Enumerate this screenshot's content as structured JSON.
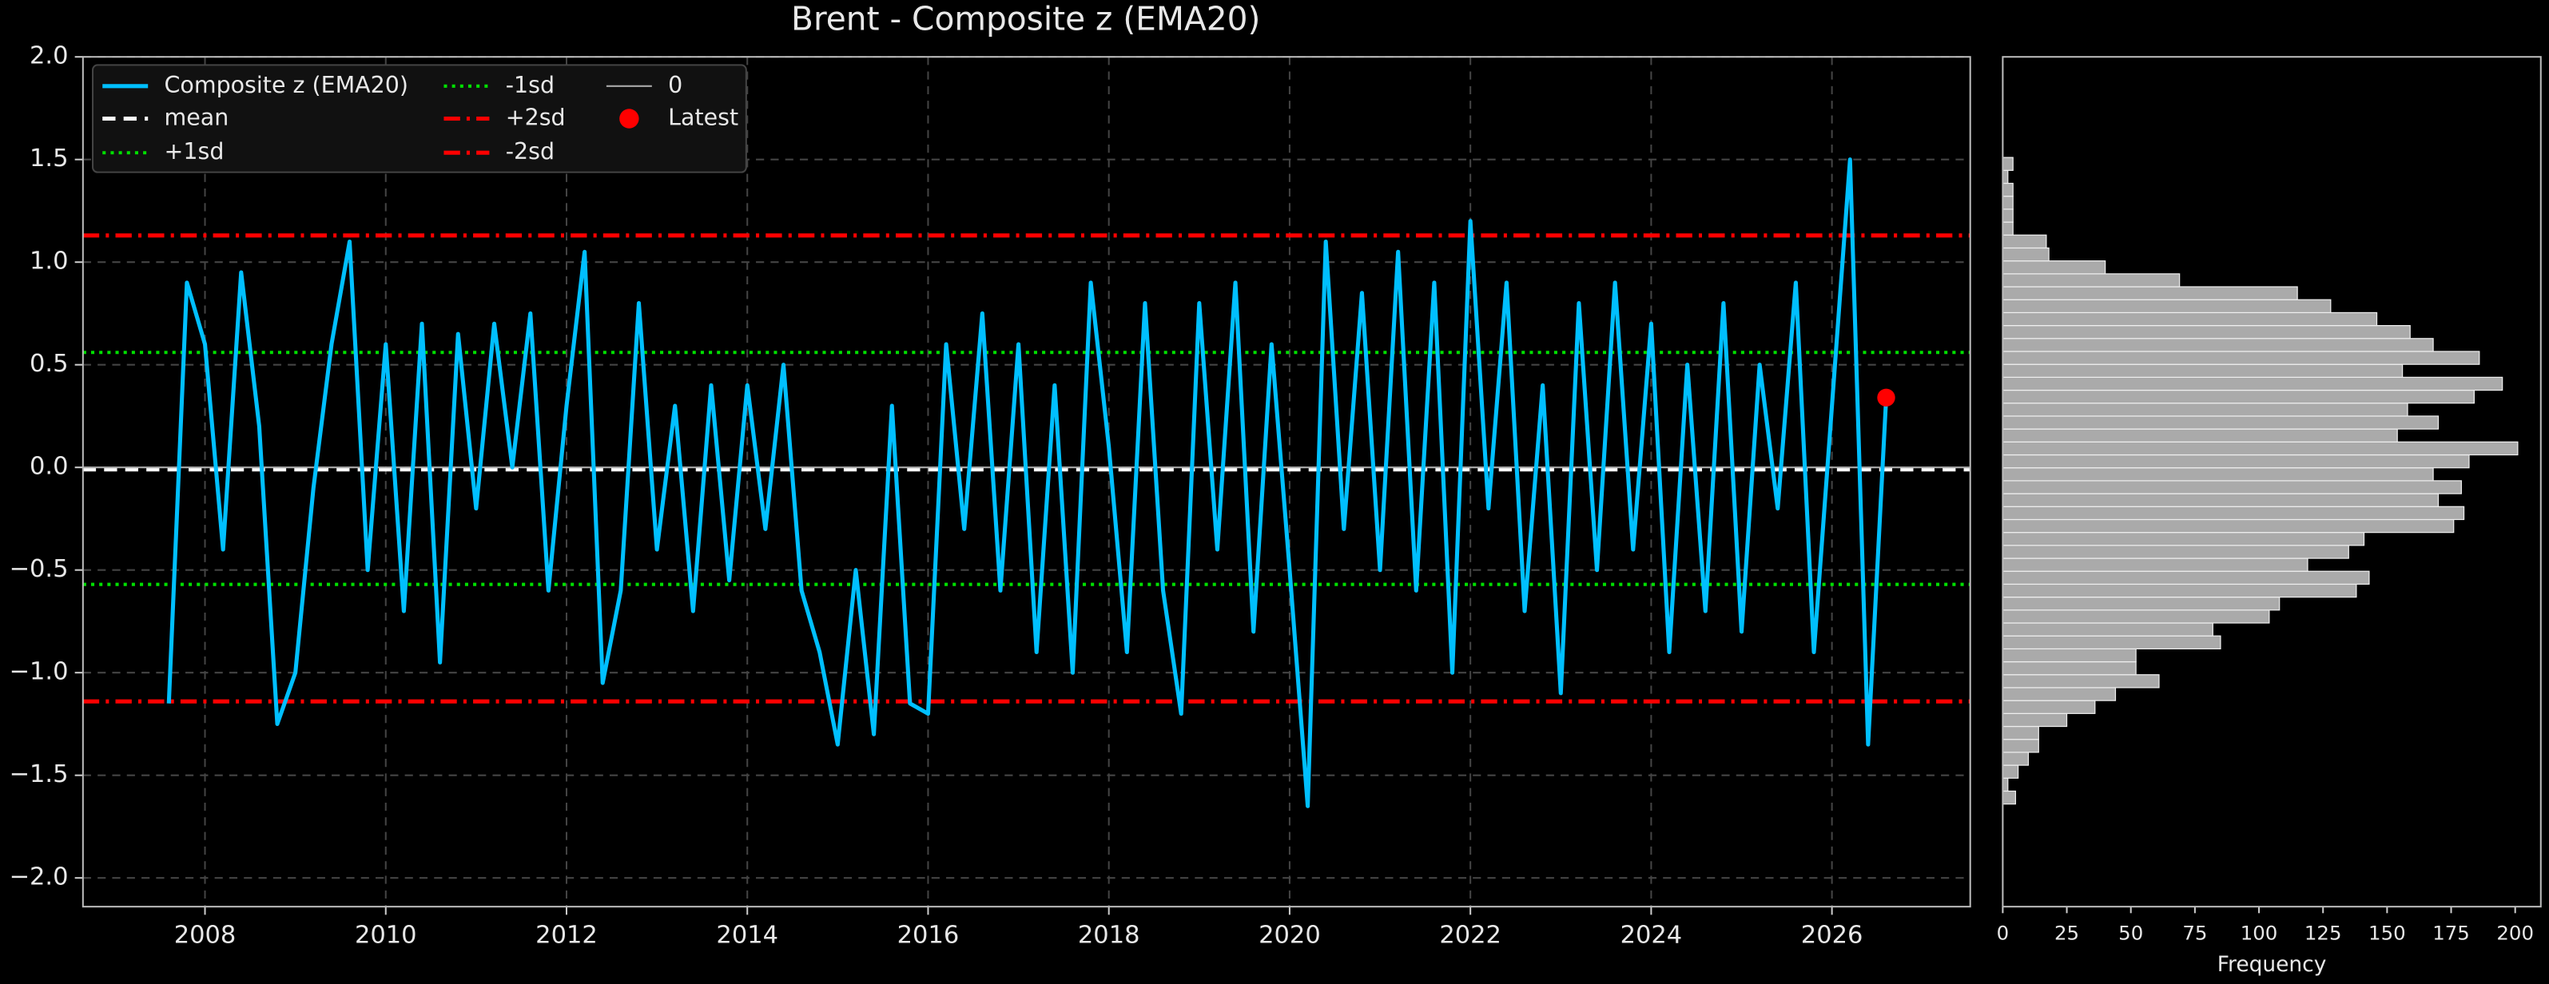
{
  "chart_data": [
    {
      "type": "line",
      "title": "Brent - Composite z (EMA20)",
      "x": [
        2007.6,
        2007.8,
        2008.0,
        2008.2,
        2008.4,
        2008.6,
        2008.8,
        2009.0,
        2009.2,
        2009.4,
        2009.6,
        2009.8,
        2010.0,
        2010.2,
        2010.4,
        2010.6,
        2010.8,
        2011.0,
        2011.2,
        2011.4,
        2011.6,
        2011.8,
        2012.0,
        2012.2,
        2012.4,
        2012.6,
        2012.8,
        2013.0,
        2013.2,
        2013.4,
        2013.6,
        2013.8,
        2014.0,
        2014.2,
        2014.4,
        2014.6,
        2014.8,
        2015.0,
        2015.2,
        2015.4,
        2015.6,
        2015.8,
        2016.0,
        2016.2,
        2016.4,
        2016.6,
        2016.8,
        2017.0,
        2017.2,
        2017.4,
        2017.6,
        2017.8,
        2018.0,
        2018.2,
        2018.4,
        2018.6,
        2018.8,
        2019.0,
        2019.2,
        2019.4,
        2019.6,
        2019.8,
        2020.0,
        2020.2,
        2020.4,
        2020.6,
        2020.8,
        2021.0,
        2021.2,
        2021.4,
        2021.6,
        2021.8,
        2022.0,
        2022.2,
        2022.4,
        2022.6,
        2022.8,
        2023.0,
        2023.2,
        2023.4,
        2023.6,
        2023.8,
        2024.0,
        2024.2,
        2024.4,
        2024.6,
        2024.8,
        2025.0,
        2025.2,
        2025.4,
        2025.6,
        2025.8,
        2026.0,
        2026.2,
        2026.4,
        2026.6
      ],
      "series": [
        {
          "name": "Composite z (EMA20)",
          "color": "#00bfff",
          "values": [
            -1.15,
            0.9,
            0.6,
            -0.4,
            0.95,
            0.2,
            -1.25,
            -1.0,
            -0.1,
            0.6,
            1.1,
            -0.5,
            0.6,
            -0.7,
            0.7,
            -0.95,
            0.65,
            -0.2,
            0.7,
            0.0,
            0.75,
            -0.6,
            0.3,
            1.05,
            -1.05,
            -0.6,
            0.8,
            -0.4,
            0.3,
            -0.7,
            0.4,
            -0.55,
            0.4,
            -0.3,
            0.5,
            -0.6,
            -0.9,
            -1.35,
            -0.5,
            -1.3,
            0.3,
            -1.15,
            -1.2,
            0.6,
            -0.3,
            0.75,
            -0.6,
            0.6,
            -0.9,
            0.4,
            -1.0,
            0.9,
            0.1,
            -0.9,
            0.8,
            -0.6,
            -1.2,
            0.8,
            -0.4,
            0.9,
            -0.8,
            0.6,
            -0.5,
            -1.65,
            1.1,
            -0.3,
            0.85,
            -0.5,
            1.05,
            -0.6,
            0.9,
            -1.0,
            1.2,
            -0.2,
            0.9,
            -0.7,
            0.4,
            -1.1,
            0.8,
            -0.5,
            0.9,
            -0.4,
            0.7,
            -0.9,
            0.5,
            -0.7,
            0.8,
            -0.8,
            0.5,
            -0.2,
            0.9,
            -0.9,
            0.3,
            1.5,
            -1.35,
            0.34
          ]
        }
      ],
      "hlines": [
        {
          "name": "mean",
          "value": -0.01,
          "color": "#ffffff",
          "style": "dashed"
        },
        {
          "name": "+1sd",
          "value": 0.56,
          "color": "#00e000",
          "style": "dotted"
        },
        {
          "name": "-1sd",
          "value": -0.57,
          "color": "#00e000",
          "style": "dotted"
        },
        {
          "name": "+2sd",
          "value": 1.13,
          "color": "#ff0000",
          "style": "dashdot"
        },
        {
          "name": "-2sd",
          "value": -1.14,
          "color": "#ff0000",
          "style": "dashdot"
        },
        {
          "name": "0",
          "value": 0,
          "color": "#aaaaaa",
          "style": "solid"
        }
      ],
      "latest": {
        "name": "Latest",
        "x": 2026.6,
        "value": 0.34,
        "color": "#ff0000"
      },
      "xlim": [
        2006.65,
        2027.53
      ],
      "ylim": [
        -2.14,
        2.0
      ],
      "xticks": [
        2008,
        2010,
        2012,
        2014,
        2016,
        2018,
        2020,
        2022,
        2024,
        2026
      ],
      "yticks": [
        {
          "value": -2.0,
          "label": "−2.0"
        },
        {
          "value": -1.5,
          "label": "−1.5"
        },
        {
          "value": -1.0,
          "label": "−1.0"
        },
        {
          "value": -0.5,
          "label": "−0.5"
        },
        {
          "value": 0.0,
          "label": "0.0"
        },
        {
          "value": 0.5,
          "label": "0.5"
        },
        {
          "value": 1.0,
          "label": "1.0"
        },
        {
          "value": 1.5,
          "label": "1.5"
        },
        {
          "value": 2.0,
          "label": "2.0"
        }
      ],
      "grid": true,
      "legend": "upper left"
    },
    {
      "type": "histogram",
      "orientation": "horizontal",
      "color": "#aaaaaa",
      "xlabel": "Frequency",
      "bins": [
        -1.64,
        -1.577,
        -1.514,
        -1.451,
        -1.388,
        -1.325,
        -1.262,
        -1.199,
        -1.136,
        -1.073,
        -1.01,
        -0.947,
        -0.884,
        -0.821,
        -0.758,
        -0.695,
        -0.632,
        -0.569,
        -0.506,
        -0.443,
        -0.38,
        -0.317,
        -0.254,
        -0.191,
        -0.128,
        -0.065,
        -0.002,
        0.061,
        0.124,
        0.187,
        0.25,
        0.313,
        0.376,
        0.439,
        0.502,
        0.565,
        0.628,
        0.691,
        0.754,
        0.817,
        0.88,
        0.943,
        1.006,
        1.069,
        1.132,
        1.195,
        1.258,
        1.321,
        1.384,
        1.447,
        1.51
      ],
      "values": [
        5,
        2,
        6,
        10,
        14,
        14,
        25,
        36,
        44,
        61,
        52,
        52,
        85,
        82,
        104,
        108,
        138,
        143,
        119,
        135,
        141,
        176,
        180,
        170,
        179,
        168,
        182,
        201,
        154,
        170,
        158,
        184,
        195,
        156,
        186,
        168,
        159,
        146,
        128,
        115,
        69,
        40,
        18,
        17,
        4,
        4,
        4,
        4,
        2,
        4
      ],
      "xlim": [
        0,
        210
      ],
      "ylim": [
        -2.14,
        2.0
      ],
      "xticks": [
        0,
        25,
        50,
        75,
        100,
        125,
        150,
        175,
        200
      ]
    }
  ]
}
